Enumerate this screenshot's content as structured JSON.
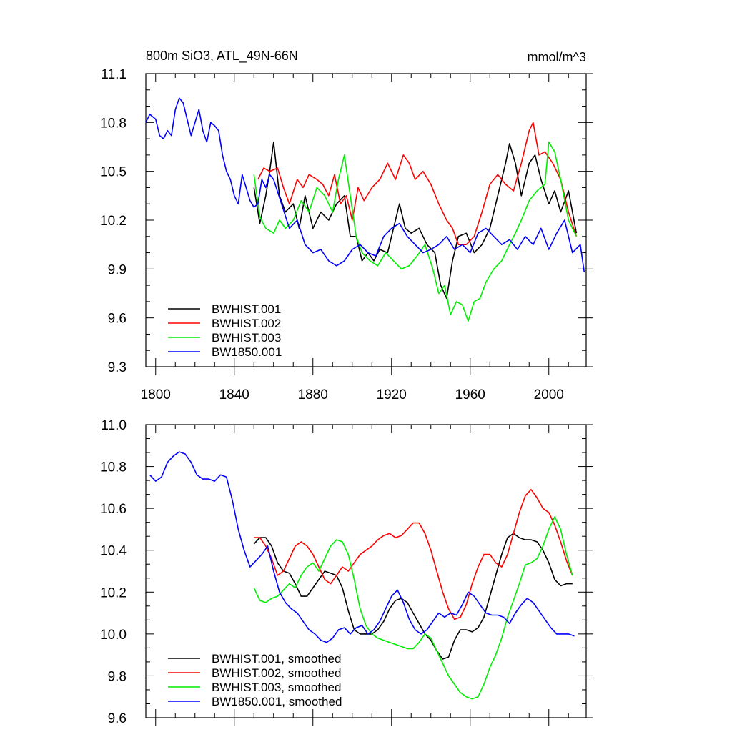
{
  "chart_data": [
    {
      "type": "line",
      "title": "800m SiO3, ATL_49N-66N",
      "units": "mmol/m^3",
      "xlim": [
        1795,
        2019
      ],
      "ylim": [
        9.3,
        11.1
      ],
      "xticks": [
        1800,
        1840,
        1880,
        1920,
        1960,
        2000
      ],
      "yticks": [
        9.3,
        9.6,
        9.9,
        10.2,
        10.5,
        10.8,
        11.1
      ],
      "ytick_labels": [
        "9.3",
        "9.6",
        "9.9",
        "10.2",
        "10.5",
        "10.8",
        "11.1"
      ],
      "legend_position": "bottom-left",
      "series": [
        {
          "name": "BWHIST.001",
          "color": "#000000",
          "x": [
            1850,
            1853,
            1856,
            1858,
            1860,
            1863,
            1866,
            1870,
            1873,
            1876,
            1880,
            1884,
            1888,
            1892,
            1896,
            1899,
            1902,
            1905,
            1908,
            1911,
            1914,
            1918,
            1921,
            1924,
            1927,
            1930,
            1934,
            1938,
            1942,
            1945,
            1948,
            1951,
            1954,
            1958,
            1962,
            1966,
            1970,
            1974,
            1978,
            1980,
            1983,
            1986,
            1990,
            1993,
            1996,
            2000,
            2003,
            2006,
            2010,
            2014
          ],
          "y": [
            10.4,
            10.18,
            10.35,
            10.5,
            10.68,
            10.35,
            10.25,
            10.3,
            10.15,
            10.35,
            10.15,
            10.25,
            10.2,
            10.3,
            10.35,
            10.1,
            10.1,
            9.95,
            10.0,
            9.95,
            10.02,
            10.0,
            10.15,
            10.3,
            10.15,
            10.12,
            10.15,
            10.05,
            10.0,
            9.8,
            9.72,
            9.95,
            10.1,
            10.12,
            10.0,
            10.05,
            10.15,
            10.35,
            10.55,
            10.67,
            10.55,
            10.35,
            10.55,
            10.6,
            10.45,
            10.3,
            10.38,
            10.25,
            10.38,
            10.12
          ]
        },
        {
          "name": "BWHIST.002",
          "color": "#ff0000",
          "x": [
            1852,
            1855,
            1858,
            1862,
            1865,
            1868,
            1872,
            1875,
            1878,
            1882,
            1885,
            1888,
            1891,
            1894,
            1897,
            1900,
            1903,
            1906,
            1910,
            1914,
            1918,
            1922,
            1926,
            1929,
            1932,
            1936,
            1940,
            1944,
            1948,
            1951,
            1954,
            1958,
            1962,
            1966,
            1970,
            1974,
            1978,
            1982,
            1986,
            1990,
            1992,
            1995,
            1998,
            2002,
            2006,
            2010,
            2014
          ],
          "y": [
            10.45,
            10.52,
            10.5,
            10.52,
            10.4,
            10.3,
            10.45,
            10.4,
            10.48,
            10.45,
            10.42,
            10.35,
            10.48,
            10.3,
            10.35,
            10.2,
            10.4,
            10.32,
            10.4,
            10.45,
            10.55,
            10.45,
            10.6,
            10.55,
            10.45,
            10.5,
            10.42,
            10.3,
            10.2,
            10.15,
            10.05,
            10.05,
            10.1,
            10.25,
            10.42,
            10.48,
            10.42,
            10.38,
            10.55,
            10.75,
            10.8,
            10.6,
            10.62,
            10.55,
            10.45,
            10.25,
            10.1
          ]
        },
        {
          "name": "BWHIST.003",
          "color": "#00ee00",
          "x": [
            1850,
            1853,
            1856,
            1860,
            1863,
            1866,
            1870,
            1874,
            1878,
            1882,
            1886,
            1890,
            1893,
            1896,
            1899,
            1902,
            1905,
            1909,
            1913,
            1917,
            1921,
            1925,
            1929,
            1933,
            1937,
            1941,
            1944,
            1947,
            1950,
            1953,
            1956,
            1959,
            1962,
            1965,
            1968,
            1972,
            1976,
            1980,
            1983,
            1986,
            1990,
            1994,
            1998,
            2000,
            2003,
            2006,
            2010,
            2014
          ],
          "y": [
            10.48,
            10.22,
            10.15,
            10.12,
            10.2,
            10.15,
            10.2,
            10.32,
            10.25,
            10.4,
            10.35,
            10.25,
            10.45,
            10.6,
            10.35,
            10.1,
            10.0,
            9.95,
            9.92,
            10.0,
            9.95,
            9.9,
            9.92,
            9.98,
            10.05,
            9.9,
            9.75,
            9.8,
            9.62,
            9.7,
            9.68,
            9.58,
            9.7,
            9.72,
            9.82,
            9.9,
            9.95,
            10.05,
            10.12,
            10.2,
            10.32,
            10.38,
            10.42,
            10.68,
            10.62,
            10.45,
            10.2,
            10.1
          ]
        },
        {
          "name": "BW1850.001",
          "color": "#0000ff",
          "x": [
            1795,
            1797,
            1800,
            1802,
            1804,
            1806,
            1808,
            1810,
            1812,
            1814,
            1816,
            1818,
            1820,
            1822,
            1824,
            1826,
            1828,
            1830,
            1832,
            1834,
            1836,
            1838,
            1840,
            1842,
            1844,
            1846,
            1848,
            1850,
            1852,
            1854,
            1856,
            1858,
            1860,
            1864,
            1868,
            1872,
            1876,
            1880,
            1884,
            1888,
            1892,
            1896,
            1900,
            1904,
            1908,
            1912,
            1916,
            1920,
            1924,
            1928,
            1932,
            1936,
            1940,
            1944,
            1948,
            1952,
            1956,
            1960,
            1964,
            1968,
            1972,
            1976,
            1980,
            1984,
            1988,
            1992,
            1996,
            2000,
            2004,
            2008,
            2012,
            2016,
            2018
          ],
          "y": [
            10.8,
            10.85,
            10.82,
            10.72,
            10.7,
            10.75,
            10.72,
            10.88,
            10.95,
            10.92,
            10.82,
            10.72,
            10.8,
            10.88,
            10.75,
            10.68,
            10.8,
            10.78,
            10.75,
            10.6,
            10.5,
            10.45,
            10.35,
            10.3,
            10.48,
            10.4,
            10.32,
            10.28,
            10.3,
            10.45,
            10.4,
            10.48,
            10.45,
            10.3,
            10.15,
            10.2,
            10.05,
            10.0,
            10.02,
            9.95,
            9.92,
            9.95,
            10.02,
            10.05,
            10.0,
            9.98,
            10.1,
            10.15,
            10.18,
            10.1,
            10.05,
            10.0,
            10.02,
            10.05,
            10.1,
            10.02,
            10.05,
            10.0,
            10.12,
            10.15,
            10.1,
            10.05,
            10.08,
            10.02,
            10.1,
            10.05,
            10.15,
            10.02,
            10.12,
            10.2,
            10.0,
            10.05,
            9.88
          ]
        }
      ]
    },
    {
      "type": "line",
      "title": "",
      "xlim": [
        1795,
        2019
      ],
      "ylim": [
        9.6,
        11.0
      ],
      "xticks": [
        1800,
        1840,
        1880,
        1920,
        1960,
        2000
      ],
      "yticks": [
        9.6,
        9.8,
        10.0,
        10.2,
        10.4,
        10.6,
        10.8,
        11.0
      ],
      "ytick_labels": [
        "9.6",
        "9.8",
        "10.0",
        "10.2",
        "10.4",
        "10.6",
        "10.8",
        "11.0"
      ],
      "legend_position": "bottom-left",
      "series": [
        {
          "name": "BWHIST.001, smoothed",
          "color": "#000000",
          "x": [
            1850,
            1853,
            1856,
            1859,
            1862,
            1865,
            1868,
            1871,
            1874,
            1877,
            1880,
            1883,
            1886,
            1889,
            1892,
            1895,
            1898,
            1901,
            1904,
            1907,
            1910,
            1913,
            1916,
            1919,
            1922,
            1925,
            1928,
            1931,
            1934,
            1937,
            1940,
            1943,
            1946,
            1949,
            1952,
            1955,
            1958,
            1961,
            1964,
            1967,
            1970,
            1973,
            1976,
            1979,
            1982,
            1985,
            1988,
            1991,
            1994,
            1997,
            2000,
            2003,
            2006,
            2009,
            2012
          ],
          "y": [
            10.43,
            10.46,
            10.46,
            10.42,
            10.34,
            10.3,
            10.29,
            10.24,
            10.18,
            10.18,
            10.22,
            10.26,
            10.3,
            10.29,
            10.28,
            10.22,
            10.11,
            10.02,
            10.0,
            10.0,
            10.0,
            10.02,
            10.06,
            10.12,
            10.16,
            10.17,
            10.15,
            10.1,
            10.05,
            10.0,
            9.97,
            9.92,
            9.88,
            9.89,
            9.97,
            10.02,
            10.02,
            10.01,
            10.03,
            10.08,
            10.18,
            10.28,
            10.38,
            10.46,
            10.48,
            10.46,
            10.45,
            10.45,
            10.44,
            10.4,
            10.34,
            10.26,
            10.23,
            10.24,
            10.24
          ]
        },
        {
          "name": "BWHIST.002, smoothed",
          "color": "#ff0000",
          "x": [
            1850,
            1853,
            1856,
            1859,
            1862,
            1865,
            1868,
            1871,
            1874,
            1877,
            1880,
            1883,
            1886,
            1889,
            1892,
            1895,
            1898,
            1901,
            1904,
            1907,
            1910,
            1913,
            1916,
            1919,
            1922,
            1925,
            1928,
            1931,
            1934,
            1937,
            1940,
            1943,
            1946,
            1949,
            1952,
            1955,
            1958,
            1961,
            1964,
            1967,
            1970,
            1973,
            1976,
            1979,
            1982,
            1985,
            1988,
            1991,
            1994,
            1997,
            2000,
            2003,
            2006,
            2009,
            2012
          ],
          "y": [
            10.46,
            10.46,
            10.42,
            10.36,
            10.28,
            10.3,
            10.36,
            10.42,
            10.44,
            10.42,
            10.38,
            10.32,
            10.26,
            10.24,
            10.28,
            10.32,
            10.3,
            10.34,
            10.38,
            10.4,
            10.42,
            10.45,
            10.47,
            10.48,
            10.46,
            10.47,
            10.5,
            10.53,
            10.53,
            10.48,
            10.4,
            10.3,
            10.2,
            10.12,
            10.07,
            10.08,
            10.14,
            10.24,
            10.32,
            10.38,
            10.38,
            10.34,
            10.32,
            10.38,
            10.48,
            10.58,
            10.66,
            10.69,
            10.65,
            10.6,
            10.58,
            10.52,
            10.44,
            10.35,
            10.28
          ]
        },
        {
          "name": "BWHIST.003, smoothed",
          "color": "#00ee00",
          "x": [
            1850,
            1853,
            1856,
            1859,
            1862,
            1865,
            1868,
            1871,
            1874,
            1877,
            1880,
            1883,
            1886,
            1889,
            1892,
            1895,
            1898,
            1901,
            1904,
            1907,
            1910,
            1913,
            1916,
            1919,
            1922,
            1925,
            1928,
            1931,
            1934,
            1937,
            1940,
            1943,
            1946,
            1949,
            1952,
            1955,
            1958,
            1961,
            1964,
            1967,
            1970,
            1973,
            1976,
            1979,
            1982,
            1985,
            1988,
            1991,
            1994,
            1997,
            2000,
            2003,
            2006,
            2009,
            2012
          ],
          "y": [
            10.22,
            10.16,
            10.15,
            10.17,
            10.18,
            10.21,
            10.24,
            10.22,
            10.28,
            10.32,
            10.34,
            10.3,
            10.36,
            10.42,
            10.45,
            10.44,
            10.38,
            10.26,
            10.12,
            10.04,
            10.0,
            9.98,
            9.97,
            9.96,
            9.95,
            9.94,
            9.93,
            9.93,
            9.96,
            10.0,
            9.98,
            9.92,
            9.86,
            9.8,
            9.76,
            9.72,
            9.7,
            9.69,
            9.7,
            9.76,
            9.84,
            9.9,
            9.98,
            10.08,
            10.16,
            10.24,
            10.33,
            10.34,
            10.36,
            10.42,
            10.5,
            10.56,
            10.5,
            10.38,
            10.28
          ]
        },
        {
          "name": "BW1850.001, smoothed",
          "color": "#0000ff",
          "x": [
            1797,
            1800,
            1803,
            1806,
            1809,
            1812,
            1815,
            1818,
            1821,
            1824,
            1827,
            1830,
            1833,
            1836,
            1839,
            1842,
            1845,
            1848,
            1851,
            1854,
            1857,
            1860,
            1863,
            1866,
            1869,
            1872,
            1875,
            1878,
            1881,
            1884,
            1887,
            1890,
            1893,
            1896,
            1899,
            1902,
            1905,
            1908,
            1911,
            1914,
            1917,
            1920,
            1923,
            1926,
            1929,
            1932,
            1935,
            1938,
            1941,
            1944,
            1947,
            1950,
            1953,
            1956,
            1959,
            1962,
            1965,
            1968,
            1971,
            1974,
            1977,
            1980,
            1983,
            1986,
            1989,
            1992,
            1995,
            1998,
            2001,
            2004,
            2007,
            2010,
            2013
          ],
          "y": [
            10.76,
            10.73,
            10.75,
            10.82,
            10.85,
            10.87,
            10.86,
            10.82,
            10.76,
            10.74,
            10.74,
            10.73,
            10.76,
            10.75,
            10.64,
            10.5,
            10.4,
            10.32,
            10.35,
            10.38,
            10.42,
            10.3,
            10.2,
            10.15,
            10.12,
            10.1,
            10.06,
            10.02,
            10.0,
            9.97,
            9.96,
            9.98,
            10.02,
            10.03,
            10.0,
            10.03,
            10.04,
            10.0,
            10.02,
            10.06,
            10.12,
            10.18,
            10.21,
            10.15,
            10.07,
            10.02,
            10.0,
            10.02,
            10.06,
            10.1,
            10.08,
            10.1,
            10.09,
            10.14,
            10.2,
            10.18,
            10.14,
            10.1,
            10.09,
            10.09,
            10.08,
            10.05,
            10.1,
            10.14,
            10.17,
            10.15,
            10.11,
            10.07,
            10.03,
            10.0,
            10.0,
            10.0,
            9.99
          ]
        }
      ]
    }
  ]
}
